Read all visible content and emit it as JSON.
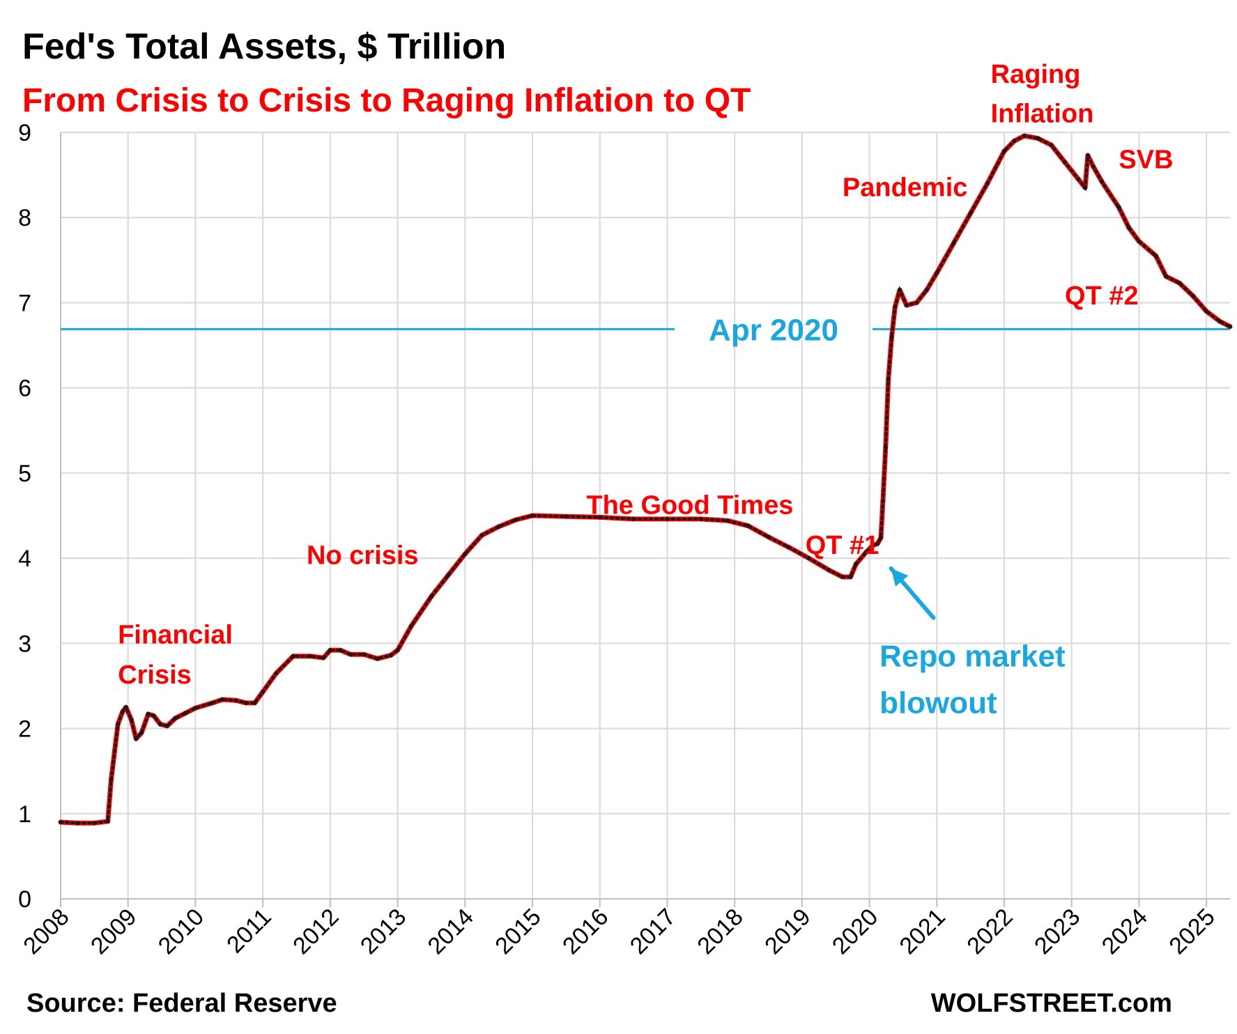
{
  "chart_data": {
    "type": "line",
    "title": "Fed's Total Assets, $ Trillion",
    "subtitle": "From Crisis to Crisis to Raging Inflation to QT",
    "xlabel": "",
    "ylabel": "",
    "xlim": [
      2008,
      2025.35
    ],
    "ylim": [
      0,
      9
    ],
    "grid": true,
    "y_ticks": [
      "0",
      "1",
      "2",
      "3",
      "4",
      "5",
      "6",
      "7",
      "8",
      "9"
    ],
    "x_ticks": [
      "2008",
      "2009",
      "2010",
      "2011",
      "2012",
      "2013",
      "2014",
      "2015",
      "2016",
      "2017",
      "2018",
      "2019",
      "2020",
      "2021",
      "2022",
      "2023",
      "2024",
      "2025"
    ],
    "colors": {
      "line": "#ff0000",
      "markers": "#1a1a1a",
      "reference": "#1aa7e0",
      "annotation": "#ff0000",
      "annotation_blue": "#1aa7e0"
    },
    "reference_line": {
      "label": "Apr 2020",
      "y": 6.69
    },
    "series": [
      {
        "points": [
          [
            2008.0,
            0.9
          ],
          [
            2008.25,
            0.89
          ],
          [
            2008.5,
            0.89
          ],
          [
            2008.7,
            0.91
          ],
          [
            2008.75,
            1.4
          ],
          [
            2008.85,
            2.05
          ],
          [
            2008.92,
            2.2
          ],
          [
            2008.97,
            2.25
          ],
          [
            2009.05,
            2.1
          ],
          [
            2009.12,
            1.88
          ],
          [
            2009.2,
            1.95
          ],
          [
            2009.3,
            2.17
          ],
          [
            2009.38,
            2.15
          ],
          [
            2009.48,
            2.05
          ],
          [
            2009.58,
            2.03
          ],
          [
            2009.7,
            2.12
          ],
          [
            2009.85,
            2.18
          ],
          [
            2010.0,
            2.24
          ],
          [
            2010.25,
            2.3
          ],
          [
            2010.4,
            2.34
          ],
          [
            2010.6,
            2.33
          ],
          [
            2010.75,
            2.3
          ],
          [
            2010.88,
            2.3
          ],
          [
            2011.0,
            2.43
          ],
          [
            2011.2,
            2.65
          ],
          [
            2011.45,
            2.85
          ],
          [
            2011.7,
            2.85
          ],
          [
            2011.9,
            2.83
          ],
          [
            2012.0,
            2.92
          ],
          [
            2012.15,
            2.92
          ],
          [
            2012.3,
            2.87
          ],
          [
            2012.5,
            2.87
          ],
          [
            2012.7,
            2.82
          ],
          [
            2012.9,
            2.86
          ],
          [
            2013.0,
            2.92
          ],
          [
            2013.2,
            3.2
          ],
          [
            2013.5,
            3.55
          ],
          [
            2013.75,
            3.8
          ],
          [
            2014.0,
            4.05
          ],
          [
            2014.25,
            4.27
          ],
          [
            2014.5,
            4.37
          ],
          [
            2014.75,
            4.45
          ],
          [
            2015.0,
            4.5
          ],
          [
            2015.5,
            4.49
          ],
          [
            2016.0,
            4.48
          ],
          [
            2016.5,
            4.46
          ],
          [
            2017.0,
            4.46
          ],
          [
            2017.5,
            4.46
          ],
          [
            2017.9,
            4.44
          ],
          [
            2018.2,
            4.38
          ],
          [
            2018.5,
            4.25
          ],
          [
            2018.8,
            4.13
          ],
          [
            2019.1,
            4.0
          ],
          [
            2019.4,
            3.86
          ],
          [
            2019.6,
            3.78
          ],
          [
            2019.72,
            3.78
          ],
          [
            2019.8,
            3.93
          ],
          [
            2019.95,
            4.07
          ],
          [
            2020.05,
            4.15
          ],
          [
            2020.12,
            4.17
          ],
          [
            2020.17,
            4.24
          ],
          [
            2020.2,
            4.67
          ],
          [
            2020.24,
            5.3
          ],
          [
            2020.28,
            6.1
          ],
          [
            2020.33,
            6.6
          ],
          [
            2020.38,
            6.95
          ],
          [
            2020.45,
            7.15
          ],
          [
            2020.55,
            6.97
          ],
          [
            2020.7,
            7.0
          ],
          [
            2020.85,
            7.15
          ],
          [
            2021.0,
            7.35
          ],
          [
            2021.25,
            7.7
          ],
          [
            2021.5,
            8.05
          ],
          [
            2021.75,
            8.4
          ],
          [
            2022.0,
            8.78
          ],
          [
            2022.15,
            8.9
          ],
          [
            2022.3,
            8.96
          ],
          [
            2022.5,
            8.93
          ],
          [
            2022.7,
            8.85
          ],
          [
            2022.9,
            8.65
          ],
          [
            2023.1,
            8.45
          ],
          [
            2023.2,
            8.35
          ],
          [
            2023.24,
            8.73
          ],
          [
            2023.32,
            8.6
          ],
          [
            2023.45,
            8.42
          ],
          [
            2023.7,
            8.12
          ],
          [
            2023.85,
            7.88
          ],
          [
            2024.0,
            7.72
          ],
          [
            2024.25,
            7.55
          ],
          [
            2024.4,
            7.31
          ],
          [
            2024.6,
            7.23
          ],
          [
            2024.8,
            7.08
          ],
          [
            2025.0,
            6.9
          ],
          [
            2025.2,
            6.78
          ],
          [
            2025.35,
            6.72
          ]
        ]
      }
    ],
    "annotations": [
      {
        "text": "Financial",
        "x": 2008.85,
        "y": 3.0,
        "color": "red"
      },
      {
        "text": "Crisis",
        "x": 2008.85,
        "y": 2.53,
        "color": "red"
      },
      {
        "text": "No crisis",
        "x": 2011.65,
        "y": 3.93,
        "color": "red"
      },
      {
        "text": "The Good Times",
        "x": 2015.8,
        "y": 4.52,
        "color": "red"
      },
      {
        "text": "QT #1",
        "x": 2019.05,
        "y": 4.05,
        "color": "red"
      },
      {
        "text": "Pandemic",
        "x": 2019.6,
        "y": 8.25,
        "color": "red"
      },
      {
        "text": "Raging",
        "x": 2021.8,
        "y": 9.58,
        "color": "red"
      },
      {
        "text": "Inflation",
        "x": 2021.8,
        "y": 9.12,
        "color": "red"
      },
      {
        "text": "SVB",
        "x": 2023.7,
        "y": 8.58,
        "color": "red"
      },
      {
        "text": "QT #2",
        "x": 2022.9,
        "y": 6.98,
        "color": "red"
      },
      {
        "text": "Repo market",
        "x": 2020.15,
        "y": 2.73,
        "color": "blue"
      },
      {
        "text": "blowout",
        "x": 2020.15,
        "y": 2.18,
        "color": "blue"
      }
    ],
    "arrow": {
      "from": [
        2020.95,
        3.3
      ],
      "to": [
        2020.32,
        3.88
      ],
      "color": "#1aa7e0"
    }
  },
  "footer": {
    "source": "Source: Federal Reserve",
    "brand": "WOLFSTREET.com"
  }
}
